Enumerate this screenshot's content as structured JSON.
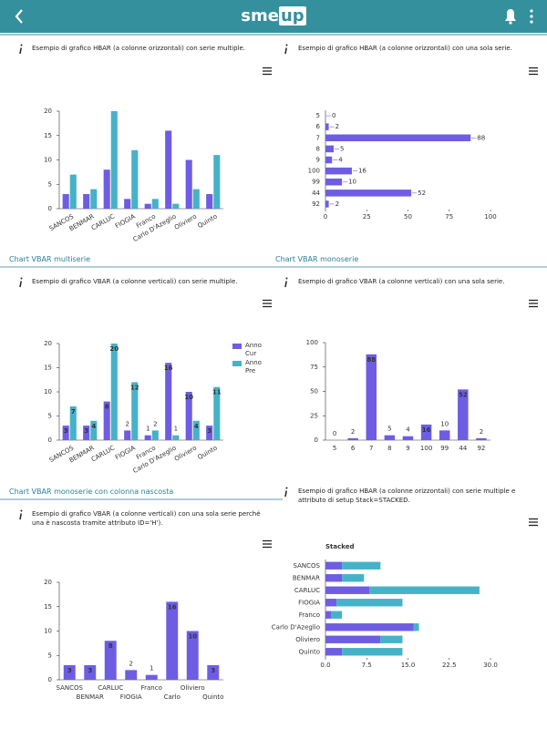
{
  "header": {
    "logo_text": "sme",
    "logo_badge": "up"
  },
  "panels": [
    {
      "description": "Esempio di grafico HBAR (a colonne orizzontali) con serie multiple."
    },
    {
      "description": "Esempio di grafico HBAR (a colonne orizzontali) con una sola serie."
    },
    {
      "section_title": "Chart VBAR multiserie",
      "description": "Esempio di grafico VBAR (a colonne verticali) con serie multiple."
    },
    {
      "section_title": "Chart VBAR monoserie",
      "description": "Esempio di grafico VBAR (a colonne verticali) con una sola serie."
    },
    {
      "section_title": "Chart VBAR monoserie con colonna nascosta",
      "description": "Esempio di grafico VBAR (a colonne verticali) con una sola serie perché una è nascosta tramite attributo ID='H')."
    },
    {
      "description": "Esempio di grafico HBAR (a colonne orizzontali) con serie multiple e attributo di setup Stack=STACKED."
    }
  ],
  "chart_data": [
    {
      "type": "bar",
      "label_style": "rotated",
      "categories": [
        "SANCOS",
        "BENMAR",
        "CARLUC",
        "FIOGIA",
        "Franco",
        "Carlo D'Azeglio",
        "Oliviero",
        "Quinto"
      ],
      "series": [
        {
          "color": "#6e5de3",
          "values": [
            3,
            3,
            8,
            2,
            1,
            16,
            10,
            3
          ]
        },
        {
          "color": "#46b2c8",
          "values": [
            7,
            4,
            20,
            12,
            2,
            1,
            4,
            11
          ]
        }
      ],
      "ylim": [
        0,
        20
      ],
      "yticks": [
        0,
        5,
        10,
        15,
        20
      ]
    },
    {
      "type": "hbar",
      "data_labels": true,
      "color": "#6e5de3",
      "categories": [
        "5",
        "6",
        "7",
        "8",
        "9",
        "100",
        "99",
        "44",
        "92"
      ],
      "values": [
        0,
        2,
        88,
        5,
        4,
        16,
        10,
        52,
        2
      ],
      "xlim": [
        0,
        100
      ],
      "xticks": [
        0,
        25,
        50,
        75,
        100
      ]
    },
    {
      "type": "bar",
      "label_style": "rotated",
      "data_labels": true,
      "legend": "right",
      "categories": [
        "SANCOS",
        "BENMAR",
        "CARLUC",
        "FIOGIA",
        "Franco",
        "Carlo D'Azeglio",
        "Oliviero",
        "Quinto"
      ],
      "series": [
        {
          "name": "Anno Cur",
          "color": "#6e5de3",
          "values": [
            3,
            3,
            8,
            2,
            1,
            16,
            10,
            3
          ]
        },
        {
          "name": "Anno Pre",
          "color": "#46b2c8",
          "values": [
            7,
            4,
            20,
            12,
            2,
            1,
            4,
            11
          ]
        }
      ],
      "ylim": [
        0,
        20
      ],
      "yticks": [
        0,
        5,
        10,
        15,
        20
      ]
    },
    {
      "type": "bar",
      "label_style": "flat",
      "data_labels": true,
      "color": "#6e5de3",
      "categories": [
        "5",
        "6",
        "7",
        "8",
        "9",
        "100",
        "99",
        "44",
        "92"
      ],
      "values": [
        0,
        2,
        88,
        5,
        4,
        16,
        10,
        52,
        2
      ],
      "ylim": [
        0,
        100
      ],
      "yticks": [
        0,
        25,
        50,
        75,
        100
      ]
    },
    {
      "type": "bar",
      "label_style": "staggered",
      "data_labels": true,
      "color": "#6e5de3",
      "categories": [
        "SANCOS",
        "BENMAR",
        "CARLUC",
        "FIOGIA",
        "Franco",
        "Carlo",
        "Oliviero",
        "Quinto"
      ],
      "values": [
        3,
        3,
        8,
        2,
        1,
        16,
        10,
        3
      ],
      "ylim": [
        0,
        20
      ],
      "yticks": [
        0,
        5,
        10,
        15,
        20
      ]
    },
    {
      "type": "hbar",
      "stacked": true,
      "title": "Stacked",
      "categories": [
        "SANCOS",
        "BENMAR",
        "CARLUC",
        "FIOGIA",
        "Franco",
        "Carlo D'Azeglio",
        "Oliviero",
        "Quinto"
      ],
      "series": [
        {
          "color": "#6e5de3",
          "values": [
            3,
            3,
            8,
            2,
            1,
            16,
            10,
            3
          ]
        },
        {
          "color": "#46b2c8",
          "values": [
            7,
            4,
            20,
            12,
            2,
            1,
            4,
            11
          ]
        }
      ],
      "xlim": [
        0,
        30
      ],
      "xticks": [
        {
          "value": 0,
          "label": "0.0"
        },
        7.5,
        {
          "value": 15,
          "label": "15.0"
        },
        22.5,
        {
          "value": 30,
          "label": "30.0"
        }
      ]
    }
  ]
}
